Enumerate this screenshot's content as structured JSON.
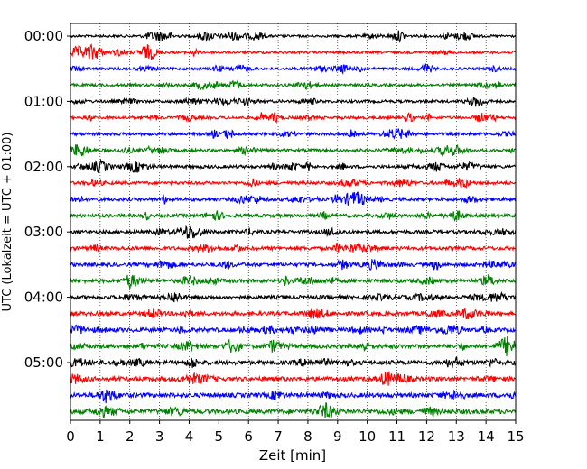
{
  "chart_data": {
    "type": "line",
    "title": "",
    "xlabel": "Zeit  [min]",
    "ylabel": "UTC (Lokalzeit = UTC + 01:00)",
    "xlim": [
      0,
      15
    ],
    "x_ticks": [
      "0",
      "1",
      "2",
      "3",
      "4",
      "5",
      "6",
      "7",
      "8",
      "9",
      "10",
      "11",
      "12",
      "13",
      "14",
      "15"
    ],
    "y_tick_labels": [
      "00:00",
      "01:00",
      "02:00",
      "03:00",
      "04:00",
      "05:00"
    ],
    "grid": "vertical dotted lines at each minute",
    "trace_interval_minutes": 15,
    "trace_start_times": [
      "00:00",
      "00:15",
      "00:30",
      "00:45",
      "01:00",
      "01:15",
      "01:30",
      "01:45",
      "02:00",
      "02:15",
      "02:30",
      "02:45",
      "03:00",
      "03:15",
      "03:30",
      "03:45",
      "04:00",
      "04:15",
      "04:30",
      "04:45",
      "05:00",
      "05:15",
      "05:30",
      "05:45"
    ],
    "trace_colors": [
      "#000000",
      "#ff0000",
      "#0000ff",
      "#008000"
    ]
  }
}
